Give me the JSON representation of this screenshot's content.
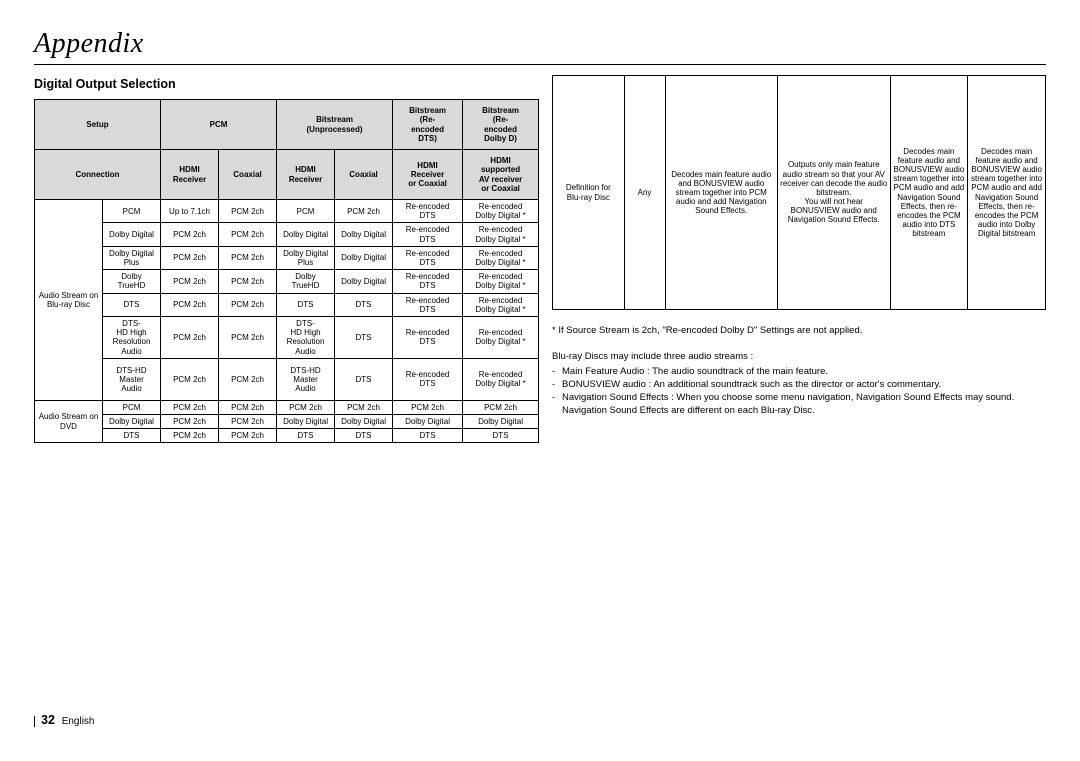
{
  "page": {
    "title": "Appendix",
    "subtitle": "Digital Output Selection",
    "number": "32",
    "lang": "English"
  },
  "leftTable": {
    "header1": {
      "setup": "Setup",
      "pcm": "PCM",
      "bu": "Bitstream\n(Unprocessed)",
      "bdts": "Bitstream\n(Re-\nencoded\nDTS)",
      "bdd": "Bitstream\n(Re-\nencoded\nDolby D)"
    },
    "header2": {
      "conn": "Connection",
      "hdmiR": "HDMI\nReceiver",
      "coax": "Coaxial",
      "hdmiR2": "HDMI\nReceiver",
      "coax2": "Coaxial",
      "hrc": "HDMI\nReceiver\nor Coaxial",
      "hsc": "HDMI\nsupported\nAV receiver\nor Coaxial"
    },
    "group1Label": "Audio Stream on\nBlu-ray Disc",
    "group2Label": "Audio Stream on\nDVD",
    "rows1": [
      [
        "PCM",
        "Up to 7.1ch",
        "PCM 2ch",
        "PCM",
        "PCM 2ch",
        "Re-encoded\nDTS",
        "Re-encoded\nDolby Digital *"
      ],
      [
        "Dolby Digital",
        "PCM 2ch",
        "PCM 2ch",
        "Dolby Digital",
        "Dolby Digital",
        "Re-encoded\nDTS",
        "Re-encoded\nDolby Digital *"
      ],
      [
        "Dolby Digital\nPlus",
        "PCM 2ch",
        "PCM 2ch",
        "Dolby Digital\nPlus",
        "Dolby Digital",
        "Re-encoded\nDTS",
        "Re-encoded\nDolby Digital *"
      ],
      [
        "Dolby\nTrueHD",
        "PCM 2ch",
        "PCM 2ch",
        "Dolby\nTrueHD",
        "Dolby Digital",
        "Re-encoded\nDTS",
        "Re-encoded\nDolby Digital *"
      ],
      [
        "DTS",
        "PCM 2ch",
        "PCM 2ch",
        "DTS",
        "DTS",
        "Re-encoded\nDTS",
        "Re-encoded\nDolby Digital *"
      ],
      [
        "DTS-\nHD High\nResolution\nAudio",
        "PCM 2ch",
        "PCM 2ch",
        "DTS-\nHD High\nResolution\nAudio",
        "DTS",
        "Re-encoded\nDTS",
        "Re-encoded\nDolby Digital *"
      ],
      [
        "DTS-HD\nMaster\nAudio",
        "PCM 2ch",
        "PCM 2ch",
        "DTS-HD\nMaster\nAudio",
        "DTS",
        "Re-encoded\nDTS",
        "Re-encoded\nDolby Digital *"
      ]
    ],
    "rows2": [
      [
        "PCM",
        "PCM 2ch",
        "PCM 2ch",
        "PCM 2ch",
        "PCM 2ch",
        "PCM 2ch",
        "PCM 2ch"
      ],
      [
        "Dolby Digital",
        "PCM 2ch",
        "PCM 2ch",
        "Dolby Digital",
        "Dolby Digital",
        "Dolby Digital",
        "Dolby Digital"
      ],
      [
        "DTS",
        "PCM 2ch",
        "PCM 2ch",
        "DTS",
        "DTS",
        "DTS",
        "DTS"
      ]
    ]
  },
  "rightTable": {
    "rowLabel": "Definition for\nBlu-ray Disc",
    "any": "Any",
    "c1": "Decodes main feature audio and BONUSVIEW audio stream together into PCM audio and add Navigation Sound Effects.",
    "c2": "Outputs only main feature audio stream so that your AV receiver can decode the audio bitstream.\nYou will not hear BONUSVIEW audio and Navigation Sound Effects.",
    "c3": "Decodes main feature audio and BONUSVIEW audio stream together into PCM audio and add Navigation Sound Effects, then re-encodes the PCM audio into DTS bitstream",
    "c4": "Decodes main feature audio and BONUSVIEW audio stream together into PCM audio and add Navigation Sound Effects, then re-encodes the PCM audio into Dolby Digital bitstream"
  },
  "footnote": "*  If Source Stream is 2ch, \"Re-encoded Dolby D\" Settings are not applied.",
  "notes": {
    "lead": "Blu-ray Discs may include three audio streams :",
    "items": [
      "Main Feature Audio : The audio soundtrack of the main feature.",
      "BONUSVIEW audio : An additional soundtrack such as the director or actor's commentary.",
      "Navigation Sound Effects : When you choose some menu navigation, Navigation Sound Effects may sound. Navigation Sound Effects are different on each Blu-ray Disc."
    ]
  },
  "style": {
    "bg": "#ffffff",
    "headerFill": "#d9d9d9",
    "borderColor": "#000000",
    "titleFont": "Georgia",
    "titleSize": 28,
    "bodyFontSize": 8,
    "noteFontSize": 9.5
  }
}
